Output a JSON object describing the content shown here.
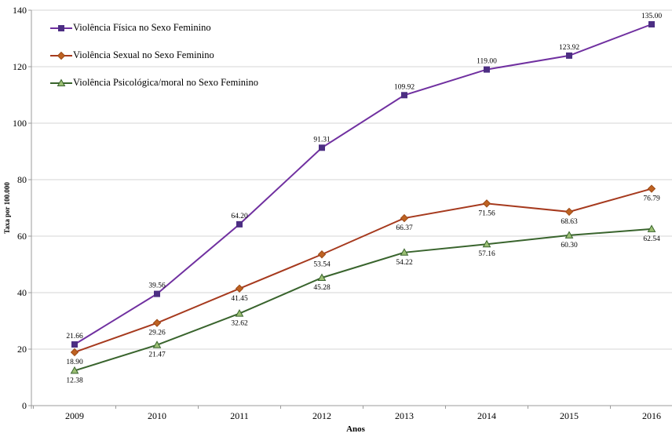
{
  "chart_data": {
    "type": "line",
    "title": "",
    "xlabel": "Anos",
    "ylabel": "Taxa por 100.000",
    "categories": [
      "2009",
      "2010",
      "2011",
      "2012",
      "2013",
      "2014",
      "2015",
      "2016"
    ],
    "ylim": [
      0,
      140
    ],
    "yticks": [
      0,
      20,
      40,
      60,
      80,
      100,
      120,
      140
    ],
    "ytick_labels": [
      "0",
      "20",
      "40",
      "60",
      "80",
      "100",
      "120",
      "140"
    ],
    "grid": "horizontal",
    "legend_position": "top-left",
    "grid_color": "#D6D6D6",
    "axis_color": "#9B9B9B",
    "text_color": "#000000",
    "series": [
      {
        "name": "Violência Física no Sexo Feminino",
        "color": "#7030A0",
        "marker": "square",
        "marker_fill": "#4C2E83",
        "marker_stroke": "#4C2E83",
        "label_position": "above",
        "values": [
          21.66,
          39.56,
          64.2,
          91.31,
          109.92,
          119.0,
          123.92,
          135.0
        ],
        "labels": [
          "21.66",
          "39.56",
          "64.20",
          "91.31",
          "109.92",
          "119.00",
          "123.92",
          "135.00"
        ]
      },
      {
        "name": "Violência Sexual no Sexo Feminino",
        "color": "#A63A1E",
        "marker": "diamond",
        "marker_fill": "#BE6222",
        "marker_stroke": "#9C4A17",
        "label_position": "below",
        "values": [
          18.9,
          29.26,
          41.45,
          53.54,
          66.37,
          71.56,
          68.63,
          76.79
        ],
        "labels": [
          "18.90",
          "29.26",
          "41.45",
          "53.54",
          "66.37",
          "71.56",
          "68.63",
          "76.79"
        ]
      },
      {
        "name": "Violência Psicológica/moral no Sexo Feminino",
        "color": "#39642D",
        "marker": "triangle",
        "marker_fill": "#9BBF74",
        "marker_stroke": "#39642D",
        "label_position": "below",
        "values": [
          12.38,
          21.47,
          32.62,
          45.28,
          54.22,
          57.16,
          60.3,
          62.54
        ],
        "labels": [
          "12.38",
          "21.47",
          "32.62",
          "45.28",
          "54.22",
          "57.16",
          "60.30",
          "62.54"
        ]
      }
    ]
  }
}
